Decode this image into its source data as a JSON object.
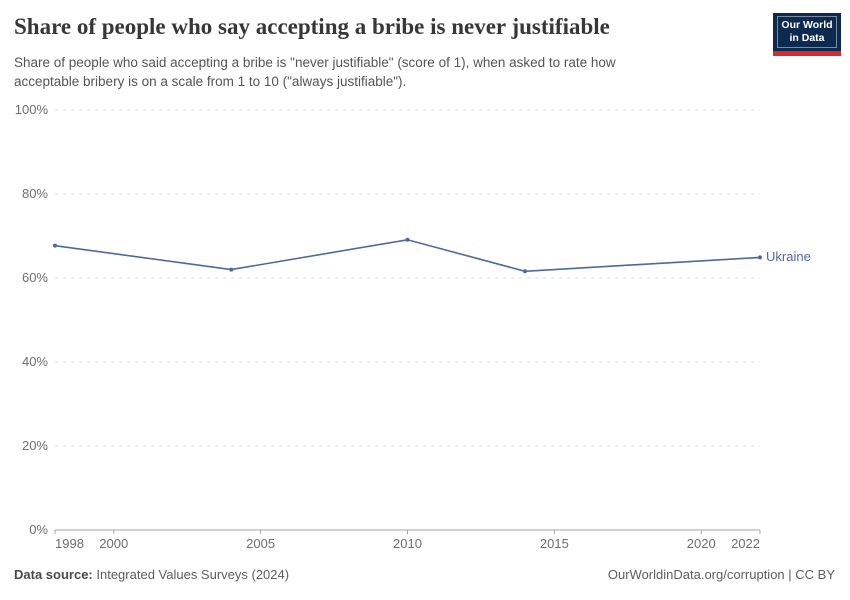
{
  "header": {
    "title": "Share of people who say accepting a bribe is never justifiable",
    "subtitle": "Share of people who said accepting a bribe is \"never justifiable\" (score of 1), when asked to rate how acceptable bribery is on a scale from 1 to 10 (\"always justifiable\").",
    "logo": {
      "line1": "Our World",
      "line2": "in Data",
      "bg_color": "#0c2a50",
      "accent_color": "#e0242e"
    }
  },
  "chart_data": {
    "type": "line",
    "series": [
      {
        "name": "Ukraine",
        "color": "#4c6a9c",
        "x": [
          1998,
          2004,
          2010,
          2014,
          2022
        ],
        "values": [
          67.7,
          62.0,
          69.1,
          61.6,
          64.9
        ]
      }
    ],
    "title": "Share of people who say accepting a bribe is never justifiable",
    "xlabel": "",
    "ylabel": "",
    "xlim": [
      1998,
      2022
    ],
    "ylim": [
      0,
      100
    ],
    "x_ticks": [
      1998,
      2000,
      2005,
      2010,
      2015,
      2020,
      2022
    ],
    "y_ticks": [
      0,
      20,
      40,
      60,
      80,
      100
    ],
    "y_tick_suffix": "%",
    "grid": "horizontal-dashed",
    "legend": "end-of-line-label",
    "gridline_color": "#dcdcdc",
    "axis_color": "#a5a5a5",
    "tick_label_color": "#6e6e6e"
  },
  "footer": {
    "data_source_label": "Data source:",
    "data_source_value": "Integrated Values Surveys (2024)",
    "attribution": "OurWorldinData.org/corruption | CC BY"
  }
}
